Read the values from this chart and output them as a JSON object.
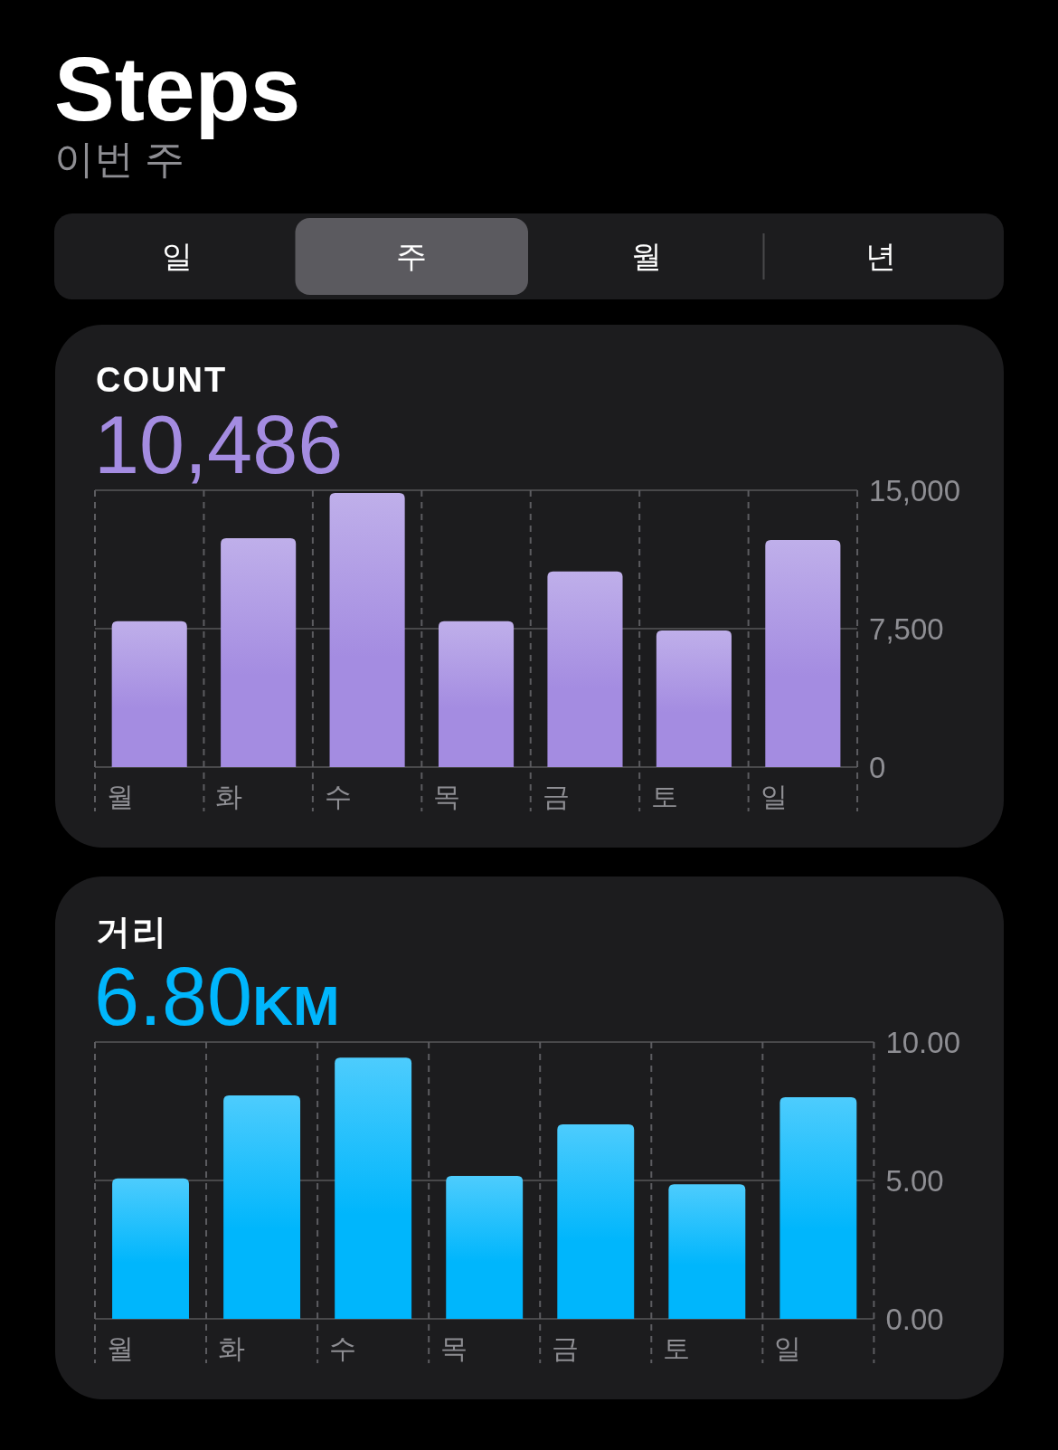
{
  "chart_data": [
    {
      "type": "other",
      "title": "Steps",
      "subtitle": "이번 주",
      "annotations": [
        "일",
        "주",
        "월",
        "년"
      ]
    },
    {
      "type": "bar",
      "title": "COUNT",
      "subtitle": "10,486",
      "categories": [
        "월",
        "화",
        "수",
        "목",
        "금",
        "토",
        "일"
      ],
      "values": [
        7900,
        12400,
        14850,
        7900,
        10600,
        7400,
        12300
      ],
      "color": "#a48ce1",
      "ylim": [
        0,
        15000
      ],
      "yticks": [
        0,
        {
          "value": 7500,
          "label": "7,500"
        },
        {
          "value": 15000,
          "label": "15,000"
        }
      ],
      "grid": true
    },
    {
      "type": "bar",
      "title": "거리",
      "subtitle": "6.80KM",
      "categories": [
        "월",
        "화",
        "수",
        "목",
        "금",
        "토",
        "일"
      ],
      "values": [
        5.07,
        8.07,
        9.44,
        5.16,
        7.03,
        4.86,
        8.01
      ],
      "color": "#00b6fc",
      "ylim": [
        0,
        10
      ],
      "yticks": [
        {
          "value": 0,
          "label": "0.00"
        },
        {
          "value": 5,
          "label": "5.00"
        },
        {
          "value": 10,
          "label": "10.00"
        }
      ],
      "grid": true
    }
  ]
}
